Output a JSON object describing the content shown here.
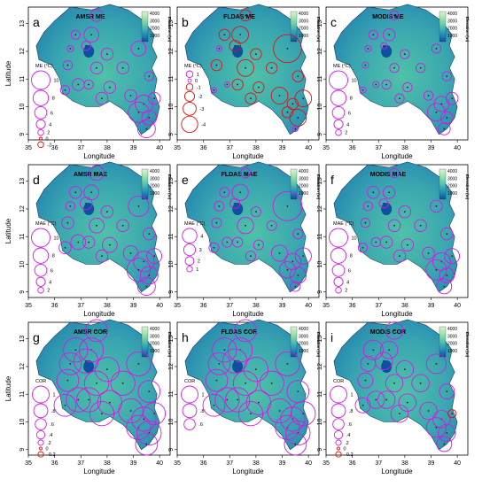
{
  "axis": {
    "x_title": "Longitude",
    "y_title": "Latitude",
    "x_ticks": [
      "35",
      "36",
      "37",
      "38",
      "39",
      "40"
    ],
    "y_ticks": [
      "9",
      "10",
      "11",
      "12",
      "13"
    ]
  },
  "colorbar": {
    "title": "Elevation (m)",
    "ticks": [
      "4000",
      "3000",
      "2000",
      "1000"
    ],
    "colors": [
      "#0b4f9c",
      "#1c86b8",
      "#3fb0b8",
      "#6ed0a8",
      "#a9e4b0",
      "#d9f3d4"
    ]
  },
  "panels": [
    {
      "letter": "a",
      "title": "AMSR ME",
      "legend_title": "ME (°C)",
      "legend_labels": [
        "10",
        "8",
        "6",
        "4",
        "2",
        "0",
        "-2"
      ],
      "legend_sizes": [
        10,
        8,
        6,
        4,
        2,
        0,
        -2
      ],
      "legend_colors": [
        "magenta",
        "magenta",
        "magenta",
        "magenta",
        "magenta",
        "red",
        "red"
      ]
    },
    {
      "letter": "b",
      "title": "FLDAS ME",
      "legend_title": "ME (°C)",
      "legend_labels": [
        "1",
        "0",
        "-1",
        "-2",
        "-3",
        "-4"
      ],
      "legend_sizes": [
        1,
        0,
        -1,
        -2,
        -3,
        -4
      ],
      "legend_colors": [
        "magenta",
        "magenta",
        "red",
        "red",
        "red",
        "red"
      ]
    },
    {
      "letter": "c",
      "title": "MODIS ME",
      "legend_title": "ME (°C)",
      "legend_labels": [
        "10",
        "8",
        "6",
        "4",
        "2"
      ],
      "legend_sizes": [
        10,
        8,
        6,
        4,
        2
      ],
      "legend_colors": [
        "magenta",
        "magenta",
        "magenta",
        "magenta",
        "magenta"
      ]
    },
    {
      "letter": "d",
      "title": "AMSR MAE",
      "legend_title": "MAE (°C)",
      "legend_labels": [
        "10",
        "8",
        "6",
        "4",
        "2"
      ],
      "legend_sizes": [
        10,
        8,
        6,
        4,
        2
      ],
      "legend_colors": [
        "magenta",
        "magenta",
        "magenta",
        "magenta",
        "magenta"
      ]
    },
    {
      "letter": "e",
      "title": "FLDAS MAE",
      "legend_title": "MAE (°C)",
      "legend_labels": [
        "4",
        "3",
        "2",
        "1"
      ],
      "legend_sizes": [
        4,
        3,
        2,
        1
      ],
      "legend_colors": [
        "magenta",
        "magenta",
        "magenta",
        "magenta"
      ]
    },
    {
      "letter": "f",
      "title": "MODIS MAE",
      "legend_title": "MAE (°C)",
      "legend_labels": [
        "10",
        "8",
        "6",
        "4",
        "2"
      ],
      "legend_sizes": [
        10,
        8,
        6,
        4,
        2
      ],
      "legend_colors": [
        "magenta",
        "magenta",
        "magenta",
        "magenta",
        "magenta"
      ]
    },
    {
      "letter": "g",
      "title": "AMSR COR",
      "legend_title": "COR",
      "legend_labels": [
        "1",
        ".8",
        ".6",
        ".4",
        ".2",
        "0",
        "-0.2"
      ],
      "legend_sizes": [
        1,
        0.8,
        0.6,
        0.4,
        0.2,
        0,
        -0.2
      ],
      "legend_colors": [
        "magenta",
        "magenta",
        "magenta",
        "magenta",
        "magenta",
        "red",
        "red"
      ]
    },
    {
      "letter": "h",
      "title": "FLDAS COR",
      "legend_title": "COR",
      "legend_labels": [
        "1",
        ".8",
        ".6"
      ],
      "legend_sizes": [
        1,
        0.8,
        0.6
      ],
      "legend_colors": [
        "magenta",
        "magenta",
        "magenta"
      ]
    },
    {
      "letter": "i",
      "title": "MODIS COR",
      "legend_title": "COR",
      "legend_labels": [
        "1",
        ".8",
        ".6",
        ".4",
        ".2",
        "0",
        "-0.2"
      ],
      "legend_sizes": [
        1,
        0.8,
        0.6,
        0.4,
        0.2,
        0,
        -0.2
      ],
      "legend_colors": [
        "magenta",
        "magenta",
        "magenta",
        "magenta",
        "magenta",
        "red",
        "red"
      ]
    }
  ],
  "stations": [
    {
      "lon": 37.6,
      "lat": 13.3
    },
    {
      "lon": 36.8,
      "lat": 12.6
    },
    {
      "lon": 37.4,
      "lat": 12.6
    },
    {
      "lon": 36.6,
      "lat": 12.1
    },
    {
      "lon": 37.2,
      "lat": 12.2
    },
    {
      "lon": 38.0,
      "lat": 11.9
    },
    {
      "lon": 39.2,
      "lat": 12.1
    },
    {
      "lon": 36.5,
      "lat": 11.5
    },
    {
      "lon": 37.6,
      "lat": 11.4
    },
    {
      "lon": 38.6,
      "lat": 11.4
    },
    {
      "lon": 39.6,
      "lat": 11.1
    },
    {
      "lon": 36.9,
      "lat": 10.8
    },
    {
      "lon": 37.3,
      "lat": 10.8
    },
    {
      "lon": 38.1,
      "lat": 10.7
    },
    {
      "lon": 36.4,
      "lat": 10.6
    },
    {
      "lon": 37.8,
      "lat": 10.3
    },
    {
      "lon": 38.9,
      "lat": 10.4
    },
    {
      "lon": 39.4,
      "lat": 10.1
    },
    {
      "lon": 39.8,
      "lat": 10.3
    },
    {
      "lon": 39.2,
      "lat": 9.8
    },
    {
      "lon": 39.6,
      "lat": 9.6
    },
    {
      "lon": 39.5,
      "lat": 9.2
    }
  ],
  "values": {
    "a": [
      3,
      2,
      4,
      1,
      2,
      3,
      4,
      2,
      3,
      3,
      2,
      3,
      2,
      3,
      2,
      3,
      3,
      5,
      3,
      6,
      4,
      5
    ],
    "b": [
      -1,
      -1,
      -2,
      0,
      -1,
      -1,
      -4,
      -1,
      -2,
      -1,
      -1,
      0,
      -1,
      -1,
      0,
      -1,
      -2,
      -1,
      -2,
      -1,
      -2,
      0
    ],
    "c": [
      2,
      2,
      3,
      1,
      1,
      2,
      2,
      1,
      2,
      2,
      2,
      1,
      2,
      2,
      1,
      2,
      2,
      4,
      3,
      5,
      3,
      3
    ],
    "d": [
      4,
      3,
      4,
      2,
      3,
      3,
      6,
      3,
      4,
      3,
      3,
      4,
      3,
      4,
      3,
      3,
      4,
      6,
      4,
      7,
      5,
      5
    ],
    "e": [
      1,
      1,
      2,
      1,
      1,
      1,
      4,
      1,
      2,
      1,
      1,
      1,
      1,
      1,
      1,
      1,
      2,
      2,
      2,
      2,
      2,
      1
    ],
    "f": [
      2,
      3,
      3,
      2,
      2,
      3,
      3,
      2,
      3,
      3,
      3,
      2,
      3,
      3,
      2,
      3,
      3,
      5,
      4,
      6,
      4,
      4
    ],
    "g": [
      0.8,
      0.9,
      0.9,
      0.8,
      0.9,
      0.9,
      0.9,
      0.8,
      0.9,
      0.9,
      0.8,
      0.9,
      0.9,
      0.9,
      0.8,
      0.9,
      0.9,
      0.9,
      0.8,
      0.9,
      0.9,
      0.8
    ],
    "h": [
      0.8,
      0.9,
      0.9,
      0.8,
      0.9,
      0.9,
      0.9,
      0.8,
      0.9,
      0.9,
      0.8,
      0.9,
      0.9,
      0.9,
      0.8,
      0.9,
      0.9,
      0.9,
      0.9,
      0.9,
      0.9,
      0.8
    ],
    "i": [
      0.6,
      0.7,
      0.6,
      0.5,
      0.6,
      0.6,
      0.7,
      0.5,
      0.6,
      0.6,
      0.5,
      0.6,
      0.6,
      0.6,
      0.5,
      0.6,
      0.6,
      0.6,
      -0.2,
      0.7,
      0.6,
      0.5
    ]
  }
}
